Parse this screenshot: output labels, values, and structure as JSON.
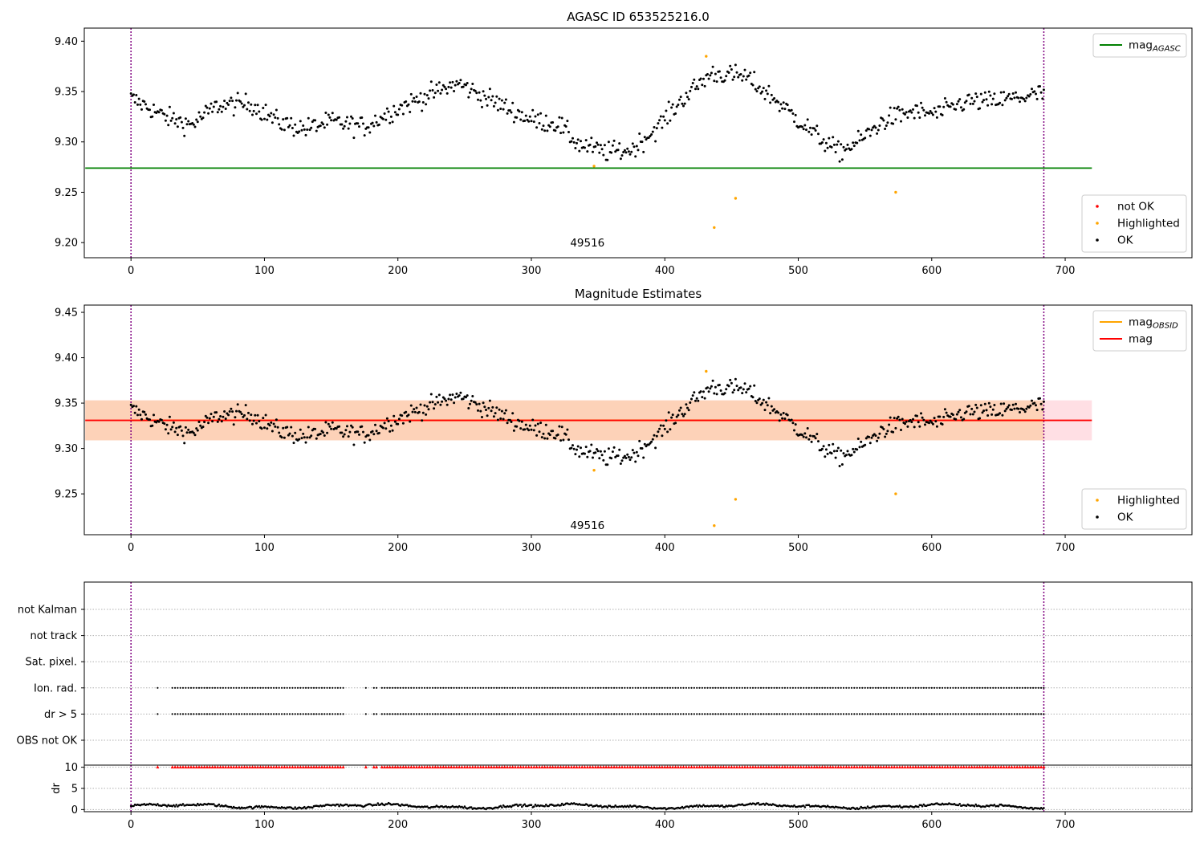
{
  "chart_data": [
    {
      "type": "scatter",
      "title": "AGASC ID 653525216.0",
      "xlim": [
        -35,
        795
      ],
      "ylim": [
        9.185,
        9.413
      ],
      "xticks": [
        0,
        100,
        200,
        300,
        400,
        500,
        600,
        700
      ],
      "yticks": [
        9.2,
        9.25,
        9.3,
        9.35,
        9.4
      ],
      "vlines": [
        0,
        684
      ],
      "hline": {
        "name": "mag_AGASC",
        "value": 9.274,
        "x_range": [
          0,
          720
        ],
        "color": "#008000"
      },
      "annotation": {
        "text": "49516",
        "x": 342,
        "y": 9.196
      },
      "series": [
        {
          "name": "not OK",
          "color": "#ff0000",
          "points": []
        },
        {
          "name": "Highlighted",
          "color": "#ffa500",
          "points": [
            [
              347,
              9.276
            ],
            [
              431,
              9.385
            ],
            [
              437,
              9.215
            ],
            [
              453,
              9.244
            ],
            [
              573,
              9.25
            ]
          ]
        },
        {
          "name": "OK",
          "color": "#000000"
        }
      ],
      "legends": [
        {
          "position": "top-right",
          "entries": [
            {
              "label": "mag",
              "sub": "AGASC",
              "kind": "line",
              "color": "#008000"
            }
          ]
        },
        {
          "position": "bottom-right",
          "entries": [
            {
              "label": "not OK",
              "kind": "dot",
              "color": "#ff0000"
            },
            {
              "label": "Highlighted",
              "kind": "dot",
              "color": "#ffa500"
            },
            {
              "label": "OK",
              "kind": "dot",
              "color": "#000000"
            }
          ]
        }
      ]
    },
    {
      "type": "scatter",
      "title": "Magnitude Estimates",
      "xlim": [
        -35,
        795
      ],
      "ylim": [
        9.205,
        9.458
      ],
      "xticks": [
        0,
        100,
        200,
        300,
        400,
        500,
        600,
        700
      ],
      "yticks": [
        9.25,
        9.3,
        9.35,
        9.4,
        9.45
      ],
      "vlines": [
        0,
        684
      ],
      "lines": [
        {
          "name": "mag",
          "value": 9.331,
          "color": "#ff0000",
          "x_range": [
            0,
            720
          ],
          "band": [
            9.309,
            9.353
          ],
          "band_color": "#ffdfe4"
        },
        {
          "name": "mag_OBSID",
          "value": 9.331,
          "color": "#ffa500",
          "x_range": [
            0,
            684
          ],
          "band": [
            9.309,
            9.353
          ],
          "band_color": "#fdd2b8"
        }
      ],
      "annotation": {
        "text": "49516",
        "x": 342,
        "y": 9.211
      },
      "series": [
        {
          "name": "Highlighted",
          "color": "#ffa500",
          "points": [
            [
              347,
              9.276
            ],
            [
              431,
              9.385
            ],
            [
              437,
              9.215
            ],
            [
              453,
              9.244
            ],
            [
              573,
              9.25
            ]
          ]
        },
        {
          "name": "OK",
          "color": "#000000"
        }
      ],
      "legends": [
        {
          "position": "top-right",
          "entries": [
            {
              "label": "mag",
              "sub": "OBSID",
              "kind": "line",
              "color": "#ffa500"
            },
            {
              "label": "mag",
              "kind": "line",
              "color": "#ff0000"
            }
          ]
        },
        {
          "position": "bottom-right",
          "entries": [
            {
              "label": "Highlighted",
              "kind": "dot",
              "color": "#ffa500"
            },
            {
              "label": "OK",
              "kind": "dot",
              "color": "#000000"
            }
          ]
        }
      ]
    },
    {
      "type": "scatter",
      "title": "",
      "xlim": [
        -35,
        795
      ],
      "categories": [
        "not Kalman",
        "not track",
        "Sat. pixel.",
        "Ion. rad.",
        "dr > 5",
        "OBS not OK"
      ],
      "vlines": [
        0,
        684
      ],
      "flag_segments": [
        [
          20,
          20
        ],
        [
          31,
          160
        ],
        [
          176,
          176
        ],
        [
          182,
          184
        ],
        [
          188,
          684
        ]
      ]
    },
    {
      "type": "scatter",
      "title": "",
      "ylabel": "dr",
      "xlim": [
        -35,
        795
      ],
      "ylim": [
        -0.5,
        10.5
      ],
      "xticks": [
        0,
        100,
        200,
        300,
        400,
        500,
        600,
        700
      ],
      "yticks": [
        0,
        5,
        10
      ],
      "vlines": [
        0,
        684
      ],
      "series": [
        {
          "name": "dr",
          "color": "#000000"
        },
        {
          "name": "clipped",
          "color": "#ff0000",
          "value": 10
        }
      ]
    }
  ]
}
